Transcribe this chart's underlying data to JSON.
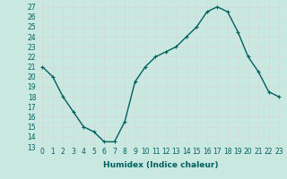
{
  "x": [
    0,
    1,
    2,
    3,
    4,
    5,
    6,
    7,
    8,
    9,
    10,
    11,
    12,
    13,
    14,
    15,
    16,
    17,
    18,
    19,
    20,
    21,
    22,
    23
  ],
  "y": [
    21,
    20,
    18,
    16.5,
    15,
    14.5,
    13.5,
    13.5,
    15.5,
    19.5,
    21,
    22,
    22.5,
    23,
    24,
    25,
    26.5,
    27,
    26.5,
    24.5,
    22,
    20.5,
    18.5,
    18
  ],
  "line_color": "#006060",
  "marker": "+",
  "marker_size": 3,
  "xlabel": "Humidex (Indice chaleur)",
  "xlim": [
    -0.5,
    23.5
  ],
  "ylim": [
    13,
    27.5
  ],
  "yticks": [
    13,
    14,
    15,
    16,
    17,
    18,
    19,
    20,
    21,
    22,
    23,
    24,
    25,
    26,
    27
  ],
  "xticks": [
    0,
    1,
    2,
    3,
    4,
    5,
    6,
    7,
    8,
    9,
    10,
    11,
    12,
    13,
    14,
    15,
    16,
    17,
    18,
    19,
    20,
    21,
    22,
    23
  ],
  "bg_color": "#c8e8e0",
  "grid_color": "#d8d8d8",
  "font_size_label": 6.5,
  "font_size_tick": 5.5,
  "linewidth": 1.0,
  "markeredgewidth": 0.8
}
